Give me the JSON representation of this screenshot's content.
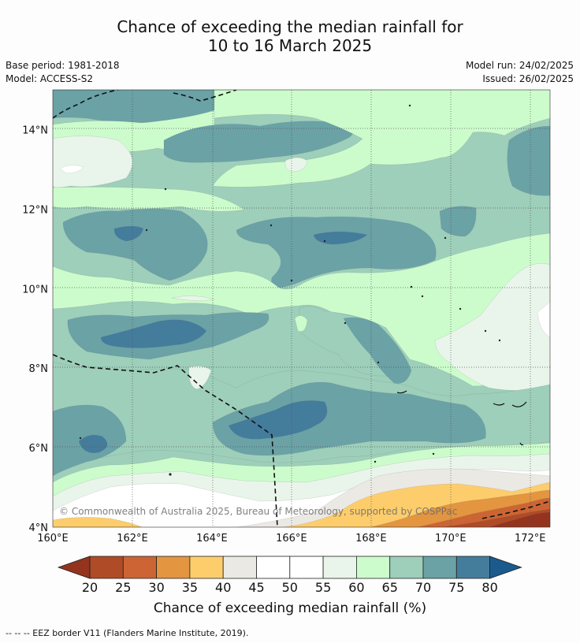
{
  "title": {
    "line1": "Chance of exceeding the median rainfall for",
    "line2": "10 to 16 March 2025"
  },
  "meta": {
    "base_period": "Base period: 1981-2018",
    "model": "Model: ACCESS-S2",
    "model_run": "Model run: 24/02/2025",
    "issued": "Issued: 26/02/2025"
  },
  "map": {
    "lon_range": [
      160,
      172.5
    ],
    "lat_range": [
      4,
      15
    ],
    "lon_ticks": [
      "160°E",
      "162°E",
      "164°E",
      "166°E",
      "168°E",
      "170°E",
      "172°E"
    ],
    "lat_ticks": [
      "4°N",
      "6°N",
      "8°N",
      "10°N",
      "12°N",
      "14°N"
    ],
    "copyright": "© Commonwealth of Australia 2025, Bureau of Meteorology, supported by COSPPac",
    "colors": {
      "c70_75": "#6aa2a6",
      "c75_80": "#447c9c",
      "c65_70": "#9dcfba",
      "c60_65": "#ccfccc",
      "c55_60": "#e9f5ea",
      "c45_55": "#ffffff",
      "c40_45": "#ebe9e4",
      "c35_40": "#fdcd6c",
      "c30_35": "#e39540",
      "c25_30": "#cc6533",
      "c20_25": "#b04b27",
      "below20": "#94341f"
    }
  },
  "colorbar": {
    "title": "Chance of exceeding median rainfall (%)",
    "ticks": [
      "20",
      "25",
      "30",
      "35",
      "40",
      "45",
      "50",
      "55",
      "60",
      "65",
      "70",
      "75",
      "80"
    ],
    "colors": [
      "#b04b27",
      "#cc6533",
      "#e39540",
      "#fdcd6c",
      "#ebe9e4",
      "#ffffff",
      "#ffffff",
      "#e9f5ea",
      "#ccfccc",
      "#9dcfba",
      "#6aa2a6",
      "#447c9c"
    ],
    "low_color": "#94341f",
    "high_color": "#1b5a8c"
  },
  "footnote": "--  --  -- EEZ border V11 (Flanders Marine Institute, 2019)."
}
